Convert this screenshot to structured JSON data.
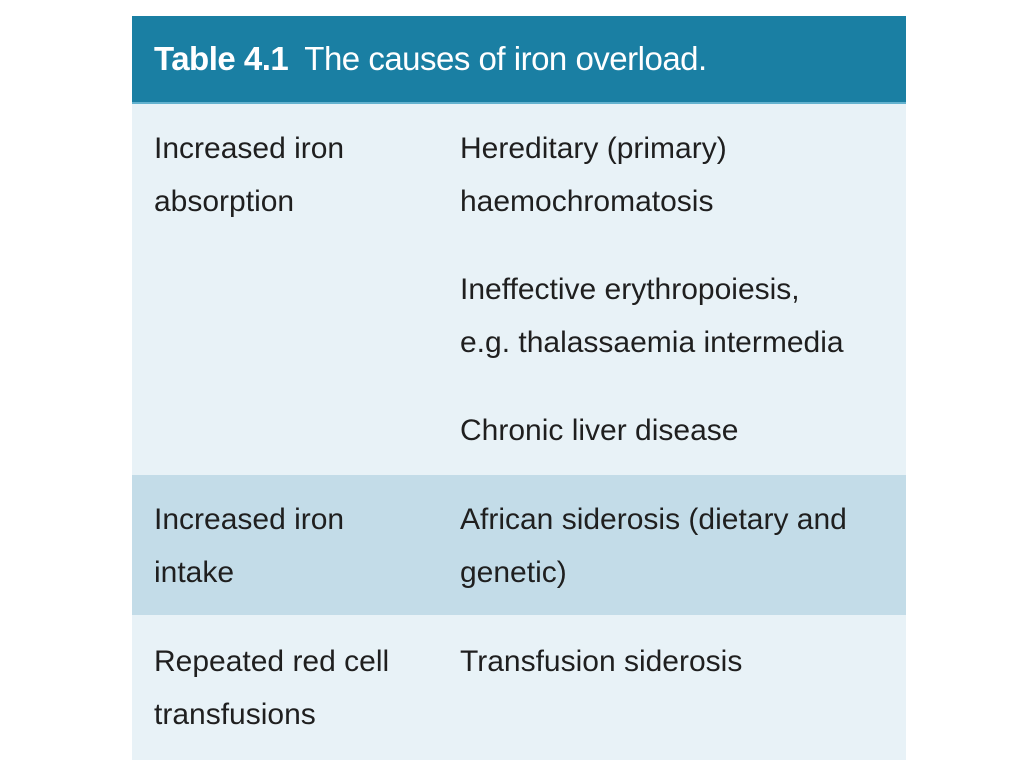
{
  "table": {
    "label": "Table 4.1",
    "title": "The causes of iron overload.",
    "rows": [
      {
        "category": [
          "Increased iron",
          "absorption"
        ],
        "causes": [
          [
            "Hereditary (primary)",
            "haemochromatosis"
          ],
          [
            "Ineffective erythropoiesis,",
            "e.g. thalassaemia intermedia"
          ],
          [
            "Chronic liver disease"
          ]
        ]
      },
      {
        "category": [
          "Increased iron",
          "intake"
        ],
        "causes": [
          [
            "African siderosis (dietary and",
            "genetic)"
          ]
        ]
      },
      {
        "category": [
          "Repeated red cell",
          "transfusions"
        ],
        "causes": [
          [
            "Transfusion siderosis"
          ]
        ]
      }
    ]
  }
}
